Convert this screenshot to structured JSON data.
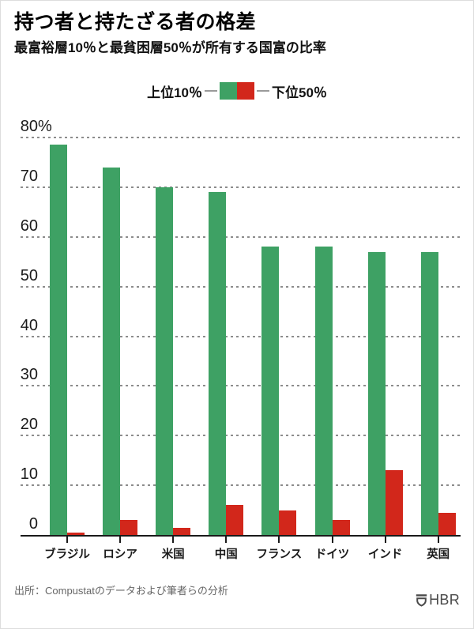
{
  "header": {
    "title": "持つ者と持たざる者の格差",
    "subtitle": "最富裕層10％と最貧困層50％が所有する国富の比率"
  },
  "legend": {
    "top10_label": "上位10％",
    "bottom50_label": "下位50％"
  },
  "colors": {
    "top10_green": "#3EA164",
    "bottom50_red": "#D2271B",
    "grid": "#8C8C8C",
    "axis": "#1A1A1A",
    "source_text": "#666666",
    "logo": "#4A4A4A"
  },
  "chart_data": {
    "type": "bar",
    "title": "持つ者と持たざる者の格差",
    "subtitle": "最富裕層10％と最貧困層50％が所有する国富の比率",
    "categories": [
      "ブラジル",
      "ロシア",
      "米国",
      "中国",
      "フランス",
      "ドイツ",
      "インド",
      "英国"
    ],
    "series": [
      {
        "name": "上位10％",
        "color": "#3EA164",
        "values": [
          78.5,
          74,
          70,
          69,
          58,
          58,
          57,
          57
        ]
      },
      {
        "name": "下位50％",
        "color": "#D2271B",
        "values": [
          0.5,
          3,
          1.5,
          6,
          5,
          3,
          13,
          4.5
        ]
      }
    ],
    "xlabel": "",
    "ylabel": "",
    "ylim": [
      0,
      80
    ],
    "yticks": [
      0,
      10,
      20,
      30,
      40,
      50,
      60,
      70,
      80
    ],
    "ytick_top_suffix": "%",
    "grid": "horizontal-dashed",
    "legend_position": "top-center"
  },
  "footer": {
    "source": "出所：Compustatのデータおよび筆者らの分析",
    "logo_text": "HBR"
  }
}
